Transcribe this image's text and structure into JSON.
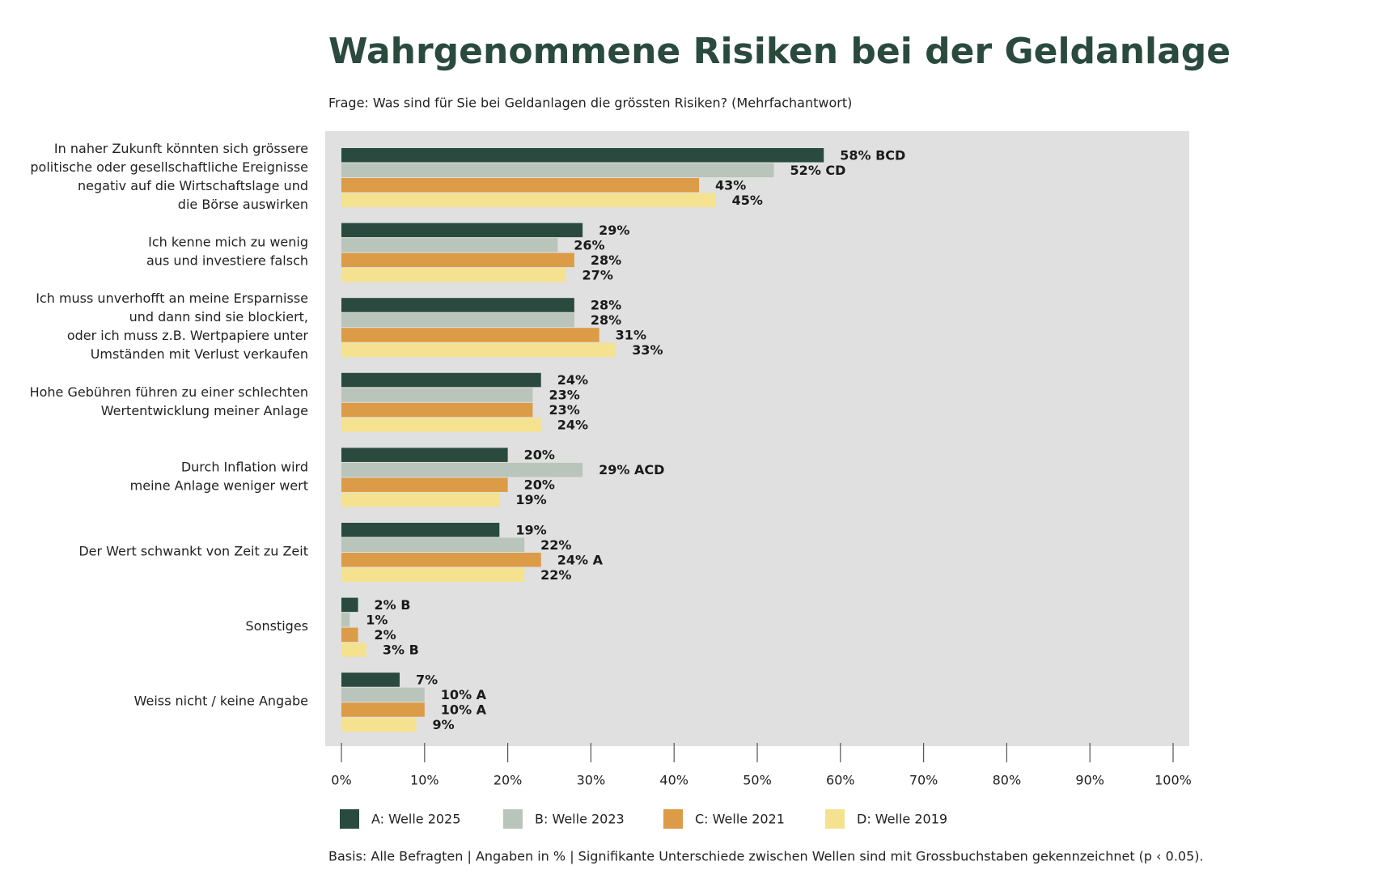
{
  "chart_data": {
    "type": "hbar",
    "title": "Wahrgenommene Risiken bei der Geldanlage",
    "subtitle": "Frage: Was sind für Sie bei Geldanlagen die grössten Risiken? (Mehrfachantwort)",
    "footnote": "Basis: Alle Befragten | Angaben in % | Signifikante Unterschiede zwischen Wellen sind mit Grossbuchstaben gekennzeichnet (p ‹ 0.05).",
    "categories": [
      [
        "In naher Zukunft könnten sich grössere",
        "politische oder gesellschaftliche Ereignisse",
        "negativ auf die Wirtschaftslage und",
        "die Börse auswirken"
      ],
      [
        "Ich kenne mich zu wenig",
        "aus und investiere falsch"
      ],
      [
        "Ich muss unverhofft an meine Ersparnisse",
        "und dann sind sie blockiert,",
        "oder ich muss z.B. Wertpapiere unter",
        "Umständen mit Verlust verkaufen"
      ],
      [
        "Hohe Gebühren führen zu einer schlechten",
        "Wertentwicklung meiner Anlage"
      ],
      [
        "Durch Inflation wird",
        "meine Anlage weniger wert"
      ],
      [
        "Der Wert schwankt von Zeit zu Zeit"
      ],
      [
        "Sonstiges"
      ],
      [
        "Weiss nicht / keine Angabe"
      ]
    ],
    "series": [
      {
        "name": "A: Welle 2025",
        "color": "#2a4a3f",
        "values": [
          58,
          29,
          28,
          24,
          20,
          19,
          2,
          7
        ],
        "value_labels": [
          "58% BCD",
          "29%",
          "28%",
          "24%",
          "20%",
          "19%",
          "2% B",
          "7%"
        ]
      },
      {
        "name": "B: Welle 2023",
        "color": "#b9c4bb",
        "values": [
          52,
          26,
          28,
          23,
          29,
          22,
          1,
          10
        ],
        "value_labels": [
          "52% CD",
          "26%",
          "28%",
          "23%",
          "29% ACD",
          "22%",
          "1%",
          "10% A"
        ]
      },
      {
        "name": "C: Welle 2021",
        "color": "#dc9b46",
        "values": [
          43,
          28,
          31,
          23,
          20,
          24,
          2,
          10
        ],
        "value_labels": [
          "43%",
          "28%",
          "31%",
          "23%",
          "20%",
          "24% A",
          "2%",
          "10% A"
        ]
      },
      {
        "name": "D: Welle 2019",
        "color": "#f5e290",
        "values": [
          45,
          27,
          33,
          24,
          19,
          22,
          3,
          9
        ],
        "value_labels": [
          "45%",
          "27%",
          "33%",
          "24%",
          "19%",
          "22%",
          "3% B",
          "9%"
        ]
      }
    ],
    "xlim": [
      0,
      100
    ],
    "xticks": [
      {
        "value": 0,
        "label": "0%"
      },
      {
        "value": 10,
        "label": "10%"
      },
      {
        "value": 20,
        "label": "20%"
      },
      {
        "value": 30,
        "label": "30%"
      },
      {
        "value": 40,
        "label": "40%"
      },
      {
        "value": 50,
        "label": "50%"
      },
      {
        "value": 60,
        "label": "60%"
      },
      {
        "value": 70,
        "label": "70%"
      },
      {
        "value": 80,
        "label": "80%"
      },
      {
        "value": 90,
        "label": "90%"
      },
      {
        "value": 100,
        "label": "100%"
      }
    ]
  }
}
